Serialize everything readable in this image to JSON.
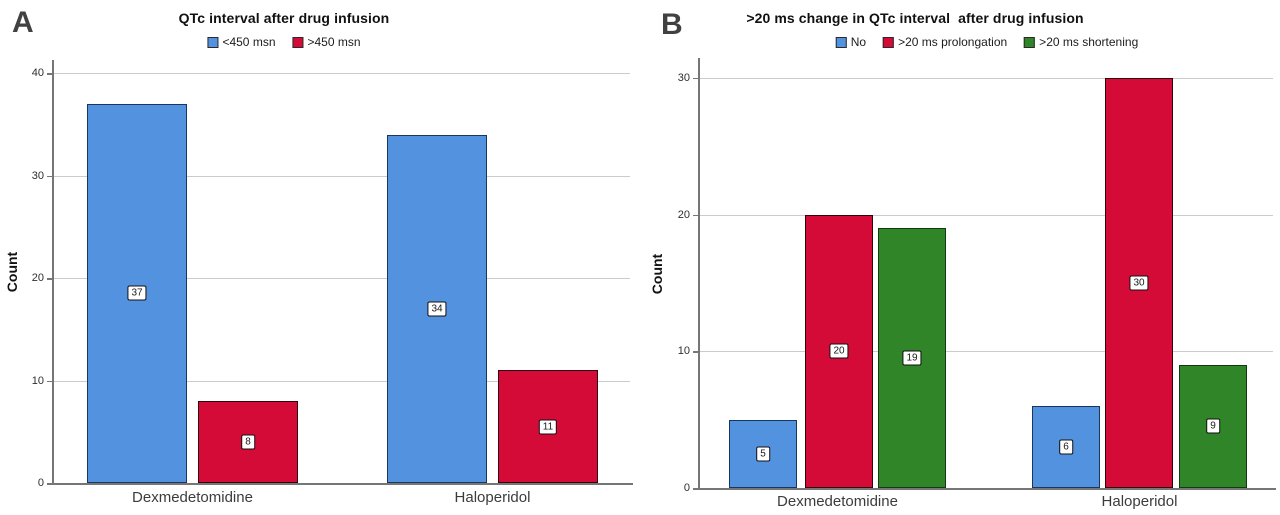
{
  "chart_data": [
    {
      "type": "bar",
      "panel_label": "A",
      "title": "QTc interval after drug infusion",
      "ylabel": "Count",
      "xlabel": "",
      "categories": [
        "Dexmedetomidine",
        "Haloperidol"
      ],
      "series": [
        {
          "name": "<450 msn",
          "color": "#5292de",
          "border": "#17375e",
          "values": [
            37,
            34
          ]
        },
        {
          "name": ">450 msn",
          "color": "#d40b36",
          "border": "#33000d",
          "values": [
            8,
            11
          ]
        }
      ],
      "yticks": [
        0,
        10,
        20,
        30,
        40
      ],
      "ylim": [
        0,
        41
      ],
      "grid": true,
      "legend_position": "top",
      "bar_value_labels": [
        [
          37,
          34
        ],
        [
          8,
          11
        ]
      ]
    },
    {
      "type": "bar",
      "panel_label": "B",
      "title": ">20 ms change in QTc interval  after drug infusion",
      "ylabel": "Count",
      "xlabel": "",
      "categories": [
        "Dexmedetomidine",
        "Haloperidol"
      ],
      "series": [
        {
          "name": "No",
          "color": "#5292de",
          "border": "#17375e",
          "values": [
            5,
            6
          ]
        },
        {
          "name": ">20 ms prolongation",
          "color": "#d40b36",
          "border": "#33000d",
          "values": [
            20,
            30
          ]
        },
        {
          "name": ">20 ms shortening",
          "color": "#2f8527",
          "border": "#123a10",
          "values": [
            19,
            9
          ]
        }
      ],
      "yticks": [
        0,
        10,
        20,
        30
      ],
      "ylim": [
        0,
        31.5
      ],
      "grid": true,
      "legend_position": "top",
      "bar_value_labels": [
        [
          5,
          6
        ],
        [
          20,
          30
        ],
        [
          19,
          9
        ]
      ]
    }
  ]
}
